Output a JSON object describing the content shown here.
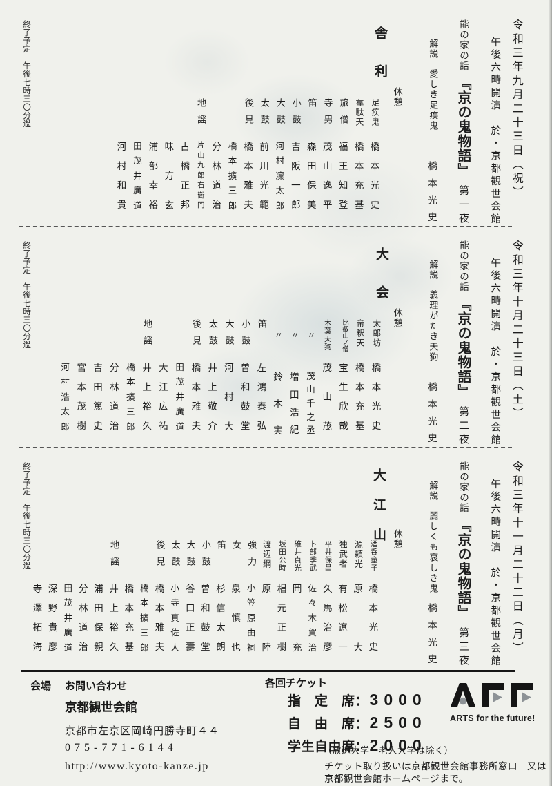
{
  "sections": [
    {
      "date": "令和三年九月二十三日（祝）",
      "time_venue": "午後六時開演　於・京都観世会館",
      "series_label": "能の家の話",
      "series_title": "『京の鬼物語』",
      "night": "第一夜",
      "kaisetsu_label": "解説",
      "kaisetsu_subtitle": "愛しき足疾鬼",
      "kaisetsu_speaker": "橋本光史",
      "kyukei": "休憩",
      "play": "舎利",
      "end_note": "終了予定　午後七時三〇分過",
      "cast": [
        {
          "role": "足疾鬼",
          "name": "橋本光史"
        },
        {
          "role": "韋駄天",
          "name": "橋本充基"
        },
        {
          "role": "旅僧",
          "name": "福王知登"
        },
        {
          "role": "寺男",
          "name": "茂山逸平"
        },
        {
          "role": "笛",
          "name": "森田保美"
        },
        {
          "role": "小鼓",
          "name": "吉阪一郎"
        },
        {
          "role": "大鼓",
          "name": "河村凜太郎"
        },
        {
          "role": "太鼓",
          "name": "前川光範"
        },
        {
          "role": "後見",
          "name": "橋本雅夫"
        },
        {
          "role": "",
          "name": "橋本擴三郎"
        },
        {
          "role": "",
          "name": "分林道治"
        },
        {
          "role": "地謡",
          "name": "片山九郎右衛門"
        },
        {
          "role": "",
          "name": "古橋正邦"
        },
        {
          "role": "",
          "name": "味方玄"
        },
        {
          "role": "",
          "name": "浦部幸裕"
        },
        {
          "role": "",
          "name": "田茂井廣道"
        },
        {
          "role": "",
          "name": "河村和貴"
        }
      ]
    },
    {
      "date": "令和三年十月二十三日（土）",
      "time_venue": "午後六時開演　於・京都観世会館",
      "series_label": "能の家の話",
      "series_title": "『京の鬼物語』",
      "night": "第二夜",
      "kaisetsu_label": "解説",
      "kaisetsu_subtitle": "義理がたき天狗",
      "kaisetsu_speaker": "橋本光史",
      "kyukei": "休憩",
      "play": "大会",
      "end_note": "終了予定　午後七時三〇分過",
      "cast": [
        {
          "role": "太郎坊",
          "name": "橋本光史"
        },
        {
          "role": "帝釈天",
          "name": "橋本充基"
        },
        {
          "role": "比叡山ノ僧",
          "name": "宝生欣哉"
        },
        {
          "role": "木葉天狗",
          "name": "茂山茂"
        },
        {
          "role": "〃",
          "name": "茂山千之丞"
        },
        {
          "role": "〃",
          "name": "増田浩紀"
        },
        {
          "role": "〃",
          "name": "鈴木実"
        },
        {
          "role": "笛",
          "name": "左鴻泰弘"
        },
        {
          "role": "小鼓",
          "name": "曽和鼓堂"
        },
        {
          "role": "大鼓",
          "name": "河村大"
        },
        {
          "role": "太鼓",
          "name": "井上敬介"
        },
        {
          "role": "後見",
          "name": "橋本雅夫"
        },
        {
          "role": "",
          "name": "田茂井廣道"
        },
        {
          "role": "",
          "name": "大江広祐"
        },
        {
          "role": "地謡",
          "name": "井上裕久"
        },
        {
          "role": "",
          "name": "橋本擴三郎"
        },
        {
          "role": "",
          "name": "分林道治"
        },
        {
          "role": "",
          "name": "吉田篤史"
        },
        {
          "role": "",
          "name": "宮本茂樹"
        },
        {
          "role": "",
          "name": "河村浩太郎"
        }
      ]
    },
    {
      "date": "令和三年十一月二十二日（月）",
      "time_venue": "午後六時開演　於・京都観世会館",
      "series_label": "能の家の話",
      "series_title": "『京の鬼物語』",
      "night": "第三夜",
      "kaisetsu_label": "解説",
      "kaisetsu_subtitle": "麗しくも哀しき鬼",
      "kaisetsu_speaker": "橋本光史",
      "kyukei": "休憩",
      "play": "大江山",
      "end_note": "終了予定　午後七時三〇分過",
      "cast": [
        {
          "role": "酒呑童子",
          "name": "橋本光史"
        },
        {
          "role": "源頼光",
          "name": "原大"
        },
        {
          "role": "独武者",
          "name": "有松遼一"
        },
        {
          "role": "平井保昌",
          "name": "久馬治彦"
        },
        {
          "role": "卜部季武",
          "name": "佐々木賀治"
        },
        {
          "role": "碓井貞光",
          "name": "岡充"
        },
        {
          "role": "坂田公時",
          "name": "椙元正樹"
        },
        {
          "role": "渡辺綱",
          "name": "原陸"
        },
        {
          "role": "強力",
          "name": "小笠原由祠"
        },
        {
          "role": "女",
          "name": "泉慎也"
        },
        {
          "role": "笛",
          "name": "杉信太朗"
        },
        {
          "role": "小鼓",
          "name": "曽和鼓堂"
        },
        {
          "role": "大鼓",
          "name": "谷口正壽"
        },
        {
          "role": "太鼓",
          "name": "小寺真佐人"
        },
        {
          "role": "後見",
          "name": "橋本雅夫"
        },
        {
          "role": "",
          "name": "橋本擴三郎"
        },
        {
          "role": "",
          "name": "橋本充基"
        },
        {
          "role": "地謡",
          "name": "井上裕久"
        },
        {
          "role": "",
          "name": "浦田保親"
        },
        {
          "role": "",
          "name": "分林道治"
        },
        {
          "role": "",
          "name": "田茂井廣道"
        },
        {
          "role": "",
          "name": "深野貴彦"
        },
        {
          "role": "",
          "name": "寺澤拓海"
        }
      ]
    }
  ],
  "footer": {
    "venue_label": "会場",
    "inquiry_label": "お問い合わせ",
    "venue_name": "京都観世会館",
    "address": "京都市左京区岡崎円勝寺町４４",
    "phone": "075-771-6144",
    "url": "http://www.kyoto-kanze.jp",
    "tickets_heading": "各回チケット",
    "tickets": [
      {
        "label": "指　定　席",
        "colon": "：",
        "price": "3000"
      },
      {
        "label": "自　由　席",
        "colon": "：",
        "price": "2500"
      },
      {
        "label": "学生自由席",
        "colon": "：",
        "price": "2000"
      }
    ],
    "note_exclusion": "（放送大学・老人大学は除く）",
    "note_sales_1": "チケット取り扱いは京都観世会館事務所窓口　又は",
    "note_sales_2": "京都観世会館ホームページまで。",
    "logo": {
      "name": "AFF",
      "tagline": "ARTS for the future!"
    }
  },
  "colors": {
    "paper": "#f0f1ec",
    "ink": "#1e1e1e",
    "logo_black": "#151515",
    "logo_gray": "#8d9296"
  }
}
